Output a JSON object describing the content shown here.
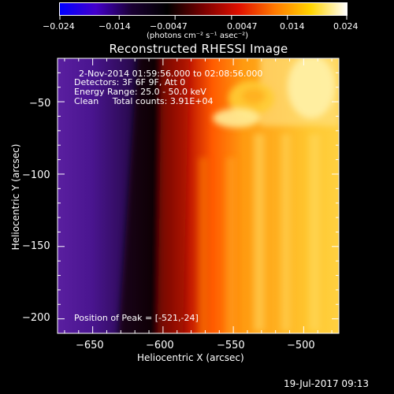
{
  "colorbar": {
    "tick_labels": [
      "−0.024",
      "−0.014",
      "−0.0047",
      "0.0047",
      "0.014",
      "0.024"
    ],
    "tick_values": [
      -0.024,
      -0.014,
      -0.0047,
      0.0047,
      0.014,
      0.024
    ],
    "units_label": "(photons cm⁻² s⁻¹ asec⁻²)",
    "colors": [
      "#0000ff",
      "#4400cc",
      "#1a0033",
      "#000000",
      "#7a0000",
      "#e01000",
      "#ff7a00",
      "#ffd400",
      "#ffffff"
    ]
  },
  "image": {
    "title": "Reconstructed RHESSI Image",
    "info_lines": [
      "2-Nov-2014 01:59:56.000 to 02:08:56.000",
      "Detectors: 3F 6F 9F, Att 0",
      "Energy Range: 25.0 - 50.0 keV",
      "Clean     Total counts: 3.91E+04"
    ],
    "peak_text": "Position of Peak = [-521,-24]",
    "x_axis": {
      "label": "Heliocentric X (arcsec)",
      "range": [
        -675,
        -475
      ],
      "ticks": [
        -650,
        -600,
        -550,
        -500
      ],
      "tick_labels": [
        "−650",
        "−600",
        "−550",
        "−500"
      ]
    },
    "y_axis": {
      "label": "Heliocentric Y (arcsec)",
      "range": [
        -210,
        -20
      ],
      "ticks": [
        -50,
        -100,
        -150,
        -200
      ],
      "tick_labels": [
        "−50",
        "−100",
        "−150",
        "−200"
      ]
    },
    "peak_position": [
      -521,
      -24
    ]
  },
  "footer": {
    "timestamp": "19-Jul-2017 09:13"
  }
}
